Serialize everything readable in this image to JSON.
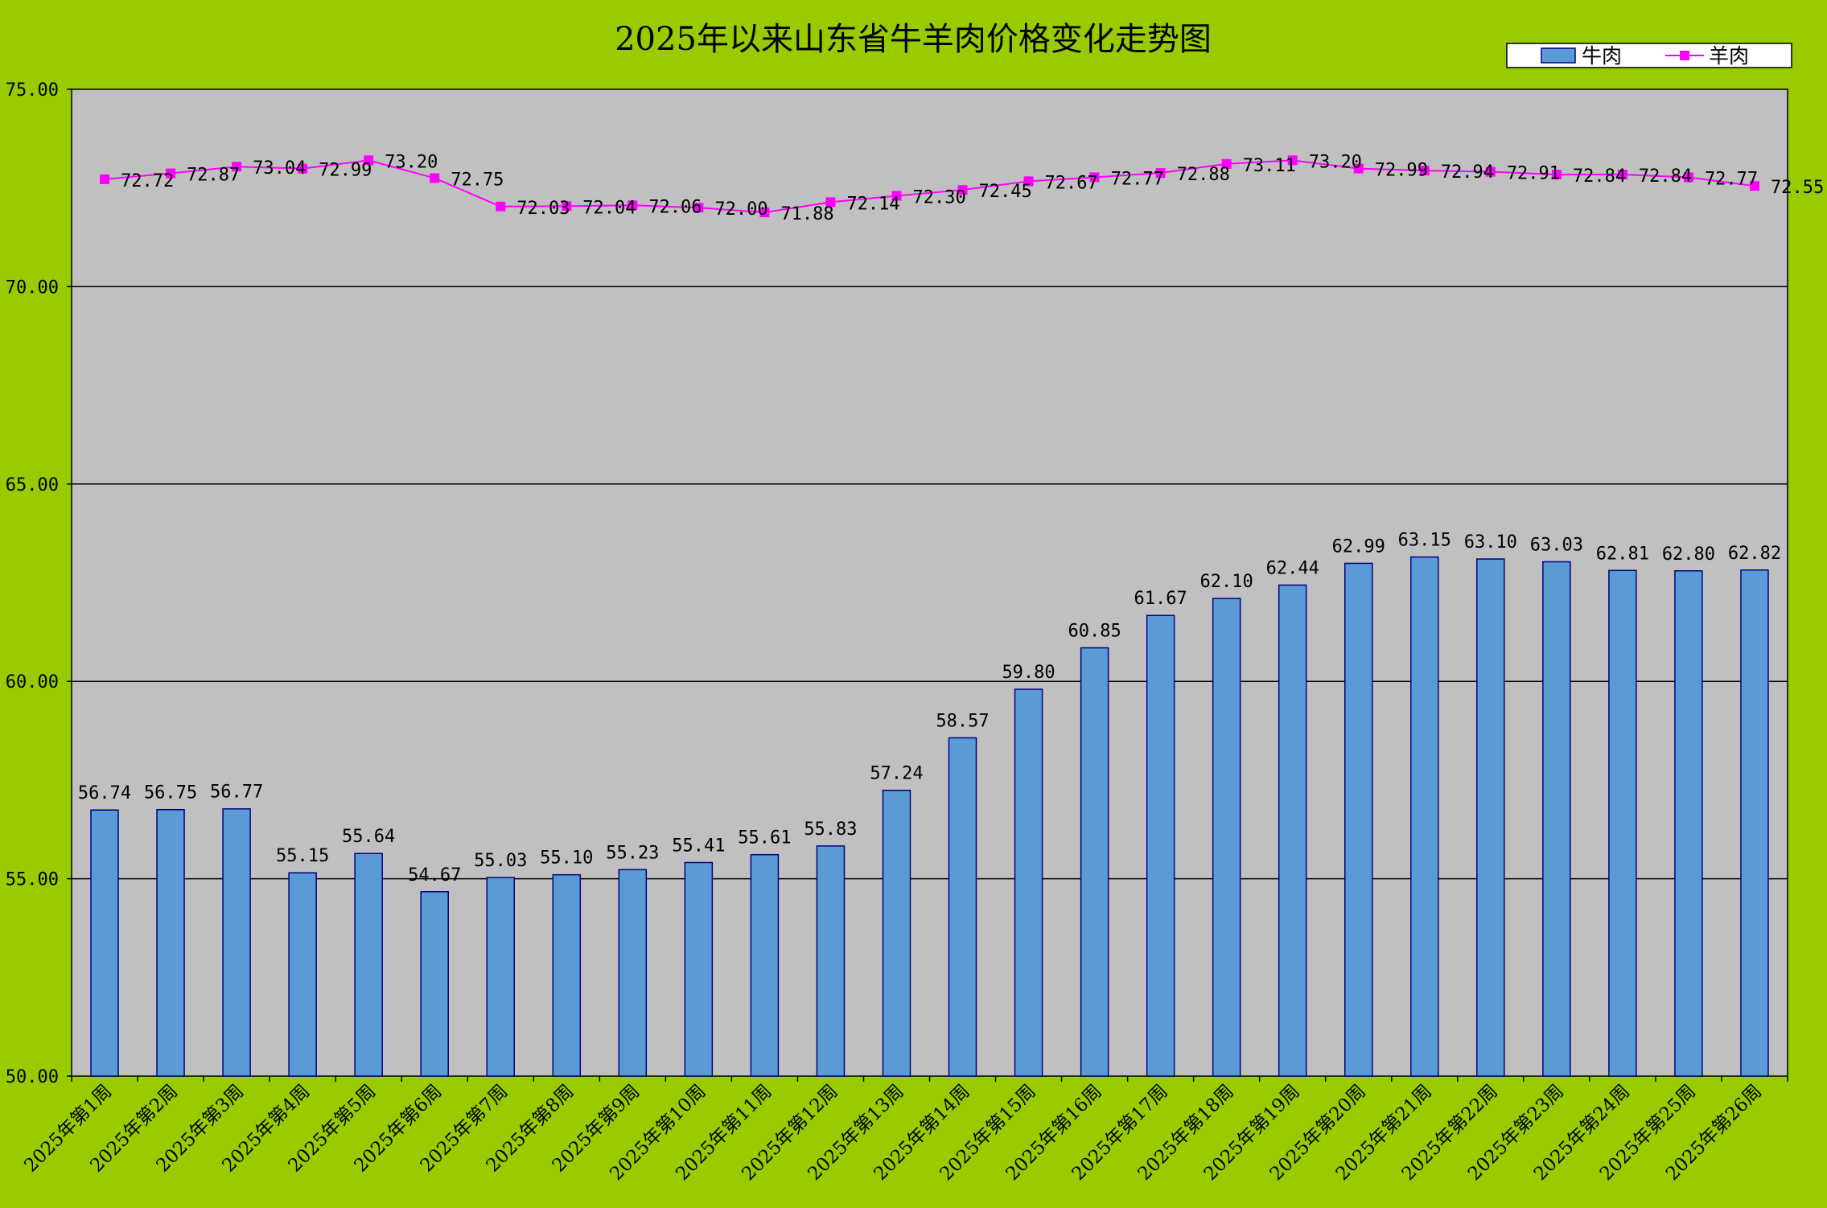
{
  "chart_data": {
    "type": "bar",
    "title": "2025年以来山东省牛羊肉价格变化走势图",
    "xlabel": "",
    "ylabel": "",
    "ylim": [
      50,
      75
    ],
    "y_ticks": [
      "50.00",
      "55.00",
      "60.00",
      "65.00",
      "70.00",
      "75.00"
    ],
    "grid": true,
    "legend_position": "top-right",
    "categories": [
      "2025年第1周",
      "2025年第2周",
      "2025年第3周",
      "2025年第4周",
      "2025年第5周",
      "2025年第6周",
      "2025年第7周",
      "2025年第8周",
      "2025年第9周",
      "2025年第10周",
      "2025年第11周",
      "2025年第12周",
      "2025年第13周",
      "2025年第14周",
      "2025年第15周",
      "2025年第16周",
      "2025年第17周",
      "2025年第18周",
      "2025年第19周",
      "2025年第20周",
      "2025年第21周",
      "2025年第22周",
      "2025年第23周",
      "2025年第24周",
      "2025年第25周",
      "2025年第26周"
    ],
    "series": [
      {
        "name": "牛肉",
        "type": "bar",
        "color": "#5B9BD5",
        "values": [
          56.74,
          56.75,
          56.77,
          55.15,
          55.64,
          54.67,
          55.03,
          55.1,
          55.23,
          55.41,
          55.61,
          55.83,
          57.24,
          58.57,
          59.8,
          60.85,
          61.67,
          62.1,
          62.44,
          62.99,
          63.15,
          63.1,
          63.03,
          62.81,
          62.8,
          62.82
        ]
      },
      {
        "name": "羊肉",
        "type": "line",
        "color": "#FF00FF",
        "values": [
          72.72,
          72.87,
          73.04,
          72.99,
          73.2,
          72.75,
          72.03,
          72.04,
          72.06,
          72.0,
          71.88,
          72.14,
          72.3,
          72.45,
          72.67,
          72.77,
          72.88,
          73.11,
          73.2,
          72.99,
          72.94,
          72.91,
          72.84,
          72.84,
          72.77,
          72.55
        ]
      }
    ],
    "colors": {
      "page_background": "#99CC00",
      "plot_background": "#C0C0C0",
      "bar_stroke": "#000080",
      "gridline": "#000000"
    }
  }
}
